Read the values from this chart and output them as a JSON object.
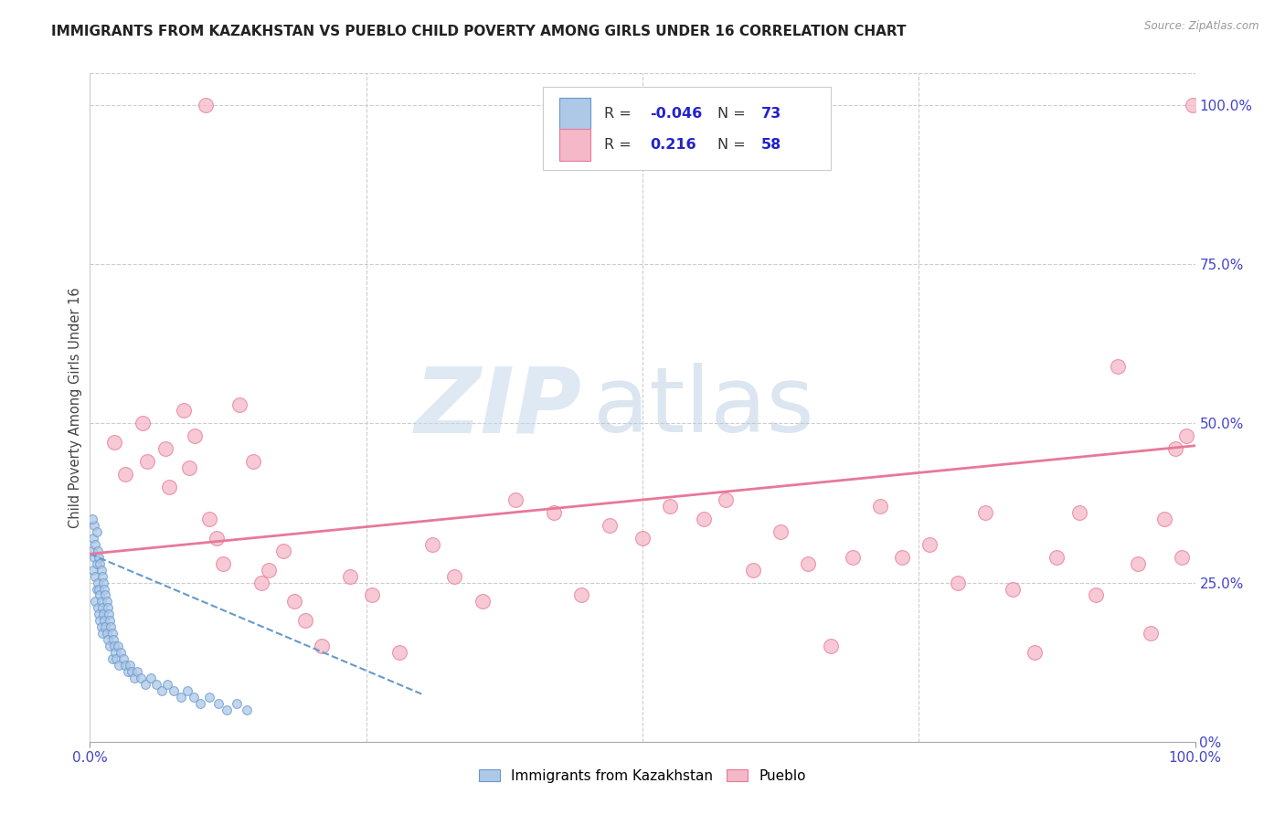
{
  "title": "IMMIGRANTS FROM KAZAKHSTAN VS PUEBLO CHILD POVERTY AMONG GIRLS UNDER 16 CORRELATION CHART",
  "source": "Source: ZipAtlas.com",
  "ylabel": "Child Poverty Among Girls Under 16",
  "legend_label1": "Immigrants from Kazakhstan",
  "legend_label2": "Pueblo",
  "r1": "-0.046",
  "n1": "73",
  "r2": "0.216",
  "n2": "58",
  "blue_fill": "#aec8e8",
  "blue_edge": "#6699cc",
  "pink_fill": "#f4b8c8",
  "pink_edge": "#e87898",
  "pink_line_color": "#e87898",
  "blue_line_color": "#6699cc",
  "background_color": "#ffffff",
  "grid_color": "#cccccc",
  "title_color": "#222222",
  "axis_tick_color": "#4444cc",
  "blue_scatter_x": [
    0.002,
    0.003,
    0.003,
    0.004,
    0.004,
    0.005,
    0.005,
    0.005,
    0.006,
    0.006,
    0.006,
    0.007,
    0.007,
    0.007,
    0.008,
    0.008,
    0.008,
    0.009,
    0.009,
    0.009,
    0.01,
    0.01,
    0.01,
    0.011,
    0.011,
    0.011,
    0.012,
    0.012,
    0.013,
    0.013,
    0.014,
    0.014,
    0.015,
    0.015,
    0.016,
    0.016,
    0.017,
    0.018,
    0.018,
    0.019,
    0.02,
    0.02,
    0.021,
    0.022,
    0.023,
    0.024,
    0.025,
    0.026,
    0.028,
    0.03,
    0.032,
    0.034,
    0.036,
    0.038,
    0.04,
    0.043,
    0.046,
    0.05,
    0.055,
    0.06,
    0.065,
    0.07,
    0.076,
    0.082,
    0.088,
    0.094,
    0.1,
    0.108,
    0.116,
    0.124,
    0.133,
    0.142,
    0.002
  ],
  "blue_scatter_y": [
    0.3,
    0.32,
    0.27,
    0.34,
    0.29,
    0.31,
    0.26,
    0.22,
    0.33,
    0.28,
    0.24,
    0.3,
    0.25,
    0.21,
    0.29,
    0.24,
    0.2,
    0.28,
    0.23,
    0.19,
    0.27,
    0.22,
    0.18,
    0.26,
    0.21,
    0.17,
    0.25,
    0.2,
    0.24,
    0.19,
    0.23,
    0.18,
    0.22,
    0.17,
    0.21,
    0.16,
    0.2,
    0.19,
    0.15,
    0.18,
    0.17,
    0.13,
    0.16,
    0.15,
    0.14,
    0.13,
    0.15,
    0.12,
    0.14,
    0.13,
    0.12,
    0.11,
    0.12,
    0.11,
    0.1,
    0.11,
    0.1,
    0.09,
    0.1,
    0.09,
    0.08,
    0.09,
    0.08,
    0.07,
    0.08,
    0.07,
    0.06,
    0.07,
    0.06,
    0.05,
    0.06,
    0.05,
    0.35
  ],
  "pink_scatter_x": [
    0.022,
    0.032,
    0.048,
    0.052,
    0.068,
    0.072,
    0.085,
    0.09,
    0.095,
    0.105,
    0.108,
    0.115,
    0.12,
    0.135,
    0.148,
    0.155,
    0.162,
    0.175,
    0.185,
    0.195,
    0.21,
    0.235,
    0.255,
    0.28,
    0.31,
    0.33,
    0.355,
    0.385,
    0.42,
    0.445,
    0.47,
    0.5,
    0.525,
    0.555,
    0.575,
    0.6,
    0.625,
    0.65,
    0.67,
    0.69,
    0.715,
    0.735,
    0.76,
    0.785,
    0.81,
    0.835,
    0.855,
    0.875,
    0.895,
    0.91,
    0.93,
    0.948,
    0.96,
    0.972,
    0.982,
    0.988,
    0.992,
    0.998
  ],
  "pink_scatter_y": [
    0.47,
    0.42,
    0.5,
    0.44,
    0.46,
    0.4,
    0.52,
    0.43,
    0.48,
    1.0,
    0.35,
    0.32,
    0.28,
    0.53,
    0.44,
    0.25,
    0.27,
    0.3,
    0.22,
    0.19,
    0.15,
    0.26,
    0.23,
    0.14,
    0.31,
    0.26,
    0.22,
    0.38,
    0.36,
    0.23,
    0.34,
    0.32,
    0.37,
    0.35,
    0.38,
    0.27,
    0.33,
    0.28,
    0.15,
    0.29,
    0.37,
    0.29,
    0.31,
    0.25,
    0.36,
    0.24,
    0.14,
    0.29,
    0.36,
    0.23,
    0.59,
    0.28,
    0.17,
    0.35,
    0.46,
    0.29,
    0.48,
    1.0
  ],
  "blue_trendline_x": [
    0.0,
    0.3
  ],
  "blue_trendline_y": [
    0.295,
    0.075
  ],
  "pink_trendline_x": [
    0.0,
    1.0
  ],
  "pink_trendline_y": [
    0.295,
    0.465
  ],
  "xlim": [
    0.0,
    1.0
  ],
  "ylim": [
    0.0,
    1.05
  ],
  "xticks": [
    0.0,
    1.0
  ],
  "xtick_labels": [
    "0.0%",
    "100.0%"
  ],
  "yticks_right": [
    0.0,
    0.25,
    0.5,
    0.75,
    1.0
  ],
  "ytick_labels_right": [
    "0%",
    "25.0%",
    "50.0%",
    "75.0%",
    "100.0%"
  ],
  "grid_yticks": [
    0.25,
    0.5,
    0.75,
    1.0
  ],
  "grid_xticks": [
    0.25,
    0.5,
    0.75
  ],
  "marker_size_blue": 50,
  "marker_size_pink": 130,
  "watermark_zip_color": "#c5d8ec",
  "watermark_atlas_color": "#b0c8de"
}
